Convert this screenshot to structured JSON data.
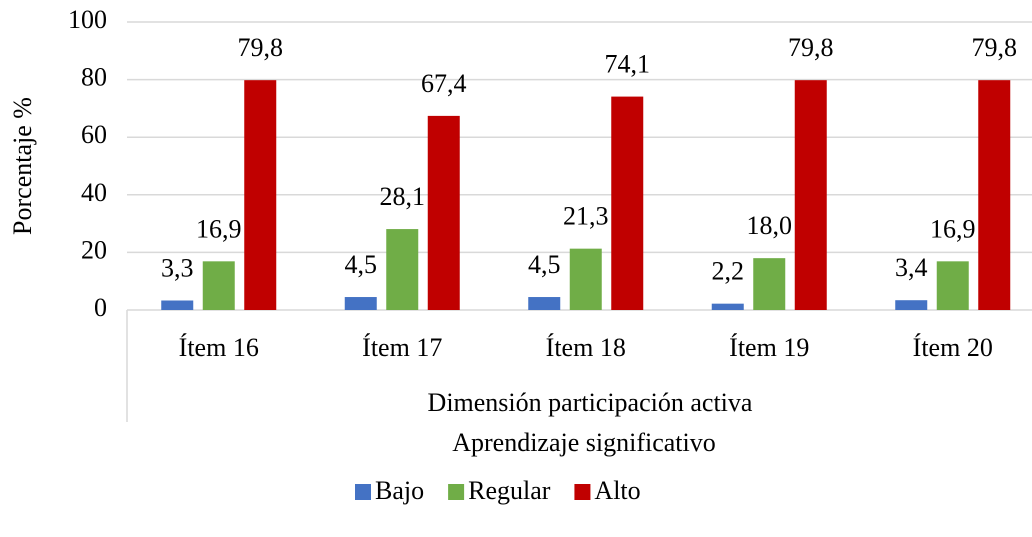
{
  "chart_data": {
    "type": "bar",
    "y_label": "Porcentaje %",
    "x_group_label": "Dimensión participación activa",
    "x_label": "Aprendizaje significativo",
    "categories": [
      "Ítem 16",
      "Ítem 17",
      "Ítem 18",
      "Ítem 19",
      "Ítem 20"
    ],
    "series": [
      {
        "name": "Bajo",
        "color": "#4472c4",
        "values": [
          3.3,
          4.5,
          4.5,
          2.2,
          3.4
        ],
        "value_labels": [
          "3,3",
          "4,5",
          "4,5",
          "2,2",
          "3,4"
        ]
      },
      {
        "name": "Regular",
        "color": "#70ad47",
        "values": [
          16.9,
          28.1,
          21.3,
          18.0,
          16.9
        ],
        "value_labels": [
          "16,9",
          "28,1",
          "21,3",
          "18,0",
          "16,9"
        ]
      },
      {
        "name": "Alto",
        "color": "#c00000",
        "values": [
          79.8,
          67.4,
          74.1,
          79.8,
          79.8
        ],
        "value_labels": [
          "79,8",
          "67,4",
          "74,1",
          "79,8",
          "79,8"
        ]
      }
    ],
    "ylim": [
      0,
      100
    ],
    "yticks": [
      0,
      20,
      40,
      60,
      80,
      100
    ],
    "grid": true,
    "legend": "bottom"
  }
}
